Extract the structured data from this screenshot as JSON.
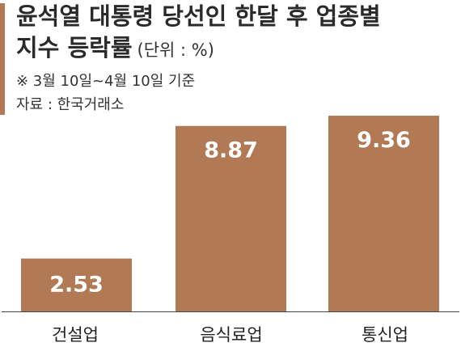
{
  "header": {
    "title_line1": "윤석열 대통령 당선인 한달 후 업종별",
    "title_line2": "지수 등락률",
    "unit": "(단위 : %)",
    "note": "※ 3월 10일~4월 10일 기준",
    "source": "자료 : 한국거래소"
  },
  "colors": {
    "bar": "#b17a54",
    "accent": "#b17a54",
    "axis": "#444444"
  },
  "chart_data": {
    "type": "bar",
    "title": "윤석열 대통령 당선인 한달 후 업종별 지수 등락률",
    "unit": "(단위 : %)",
    "categories": [
      "건설업",
      "음식료업",
      "통신업"
    ],
    "values": [
      2.53,
      8.87,
      9.36
    ],
    "value_labels": [
      "2.53",
      "8.87",
      "9.36"
    ],
    "ylim": [
      0,
      10
    ],
    "grid": false,
    "legend": "none"
  }
}
